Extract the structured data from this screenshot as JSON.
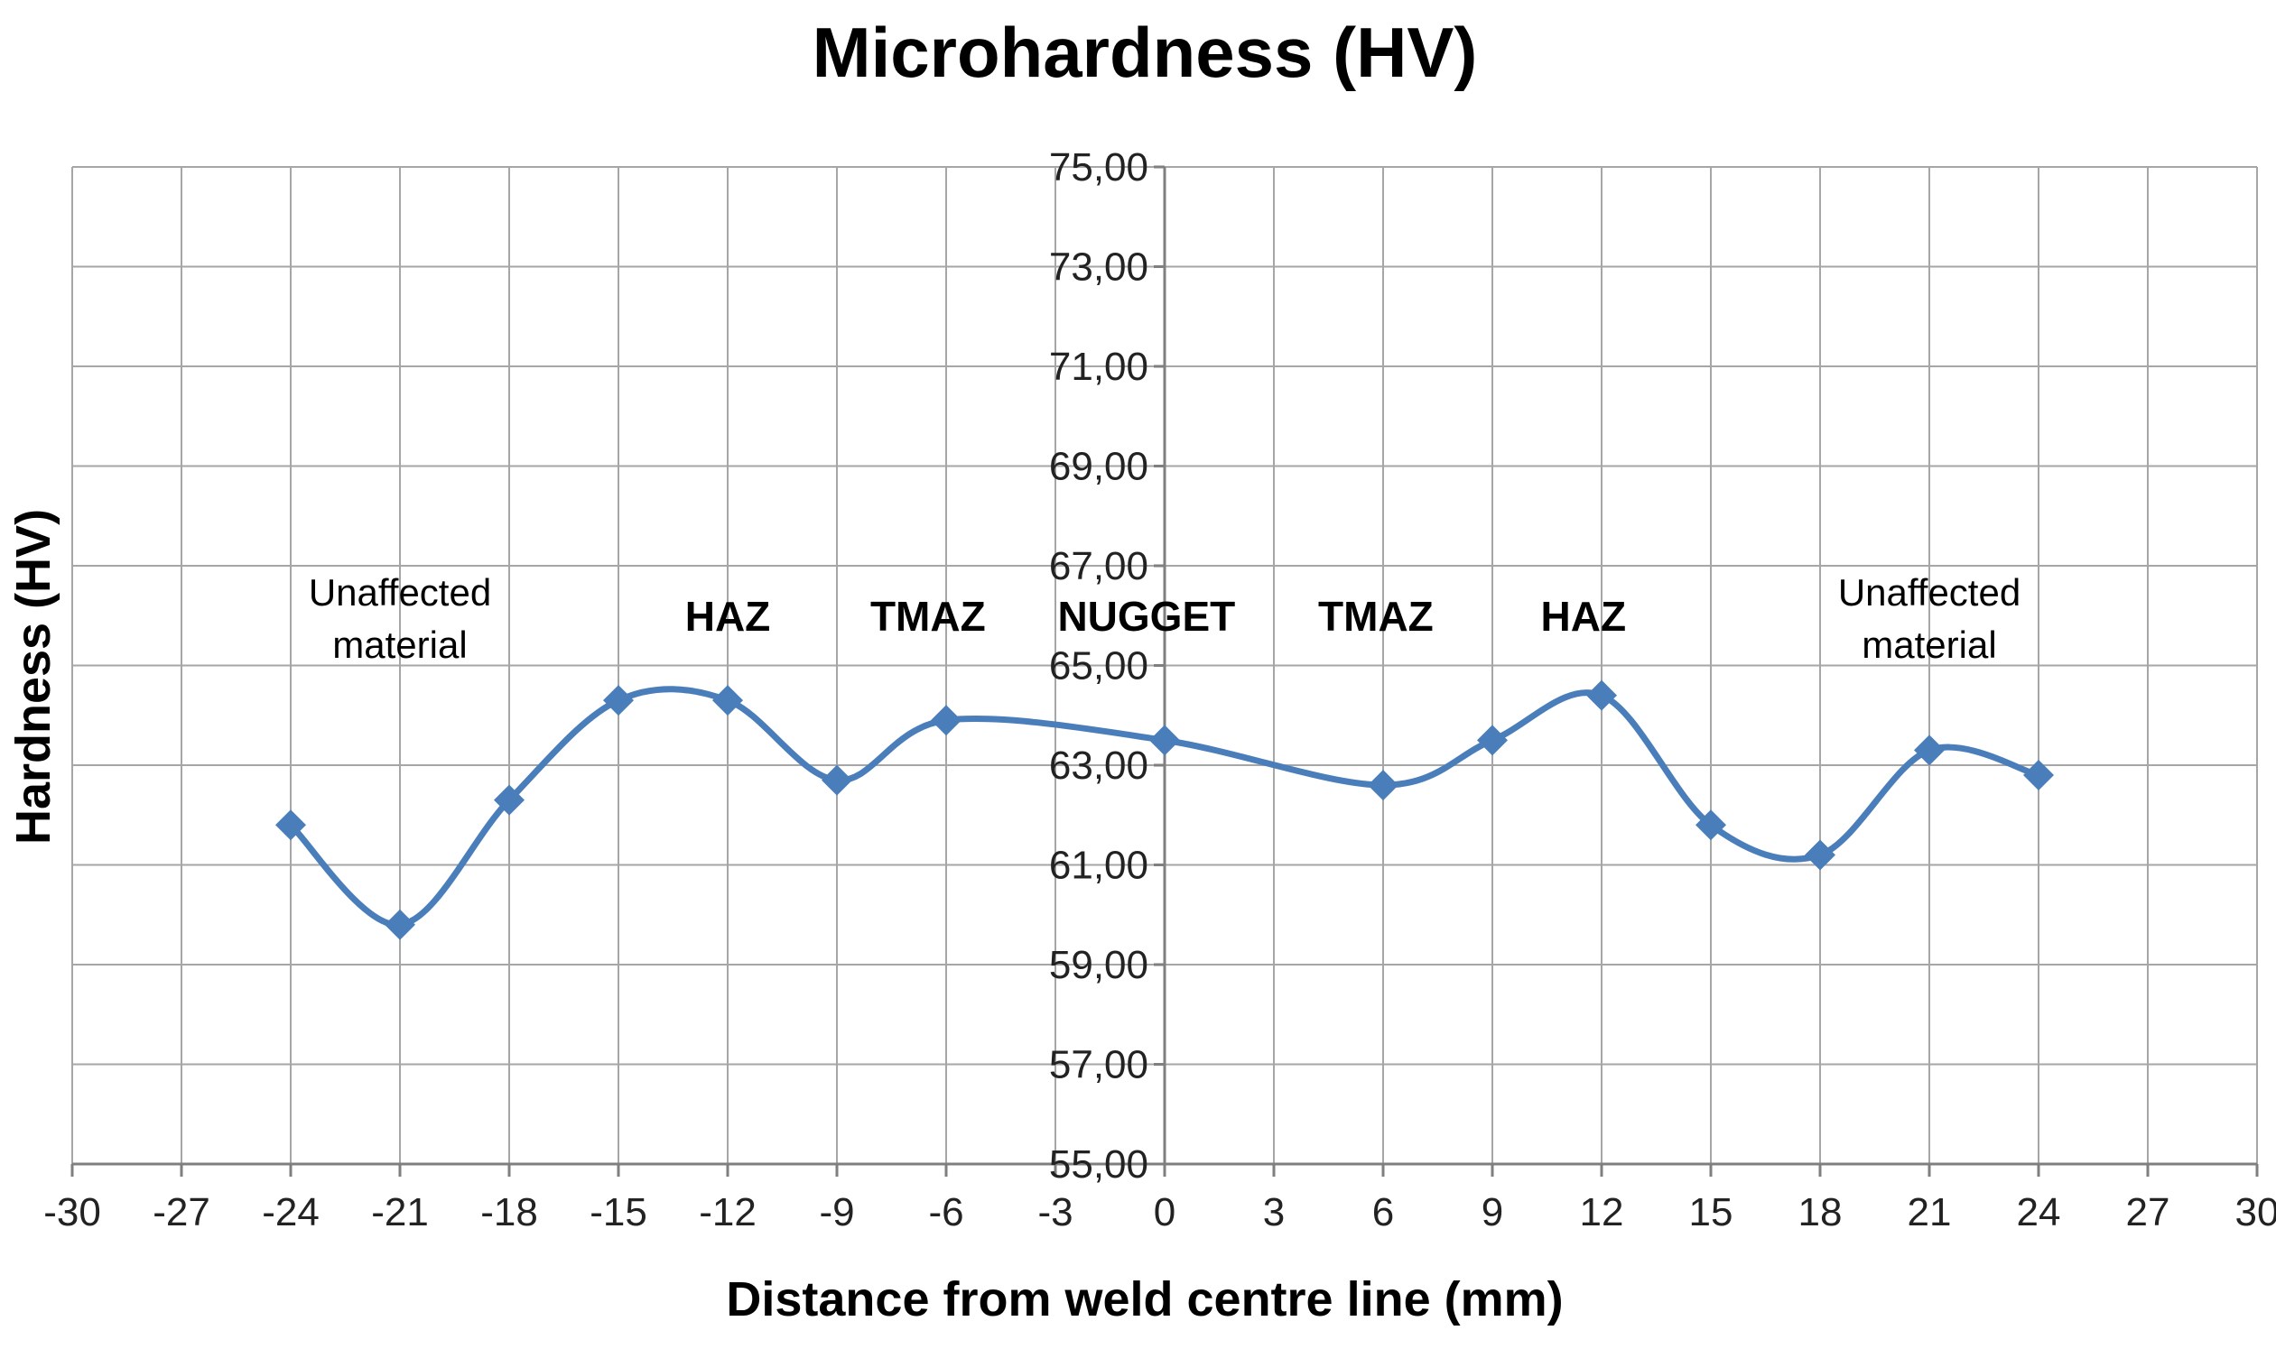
{
  "chart_data": {
    "type": "line",
    "title": "Microhardness (HV)",
    "xlabel": "Distance from weld centre line (mm)",
    "ylabel": "Hardness (HV)",
    "xlim": [
      -30,
      30
    ],
    "ylim": [
      55,
      75
    ],
    "x_ticks": [
      -30,
      -27,
      -24,
      -21,
      -18,
      -15,
      -12,
      -9,
      -6,
      -3,
      0,
      3,
      6,
      9,
      12,
      15,
      18,
      21,
      24,
      27,
      30
    ],
    "y_ticks": [
      55,
      57,
      59,
      61,
      63,
      65,
      67,
      69,
      71,
      73,
      75
    ],
    "y_tick_labels": [
      "55,00",
      "57,00",
      "59,00",
      "61,00",
      "63,00",
      "65,00",
      "67,00",
      "69,00",
      "71,00",
      "73,00",
      "75,00"
    ],
    "grid": true,
    "smooth": true,
    "marker": "diamond",
    "series_color": "#4a7ebb",
    "series": [
      {
        "x": [
          -24,
          -21,
          -18,
          -15,
          -12,
          -9,
          -6,
          0,
          6,
          9,
          12,
          15,
          18,
          21,
          24
        ],
        "y": [
          61.8,
          59.8,
          62.3,
          64.3,
          64.3,
          62.7,
          63.9,
          63.5,
          62.6,
          63.5,
          64.4,
          61.8,
          61.2,
          63.3,
          62.8
        ]
      }
    ],
    "annotations": [
      {
        "lines": [
          "Unaffected",
          "material"
        ],
        "x": -21,
        "y": 66.2,
        "weight": "normal"
      },
      {
        "lines": [
          "HAZ"
        ],
        "x": -12,
        "y": 65.7,
        "weight": "bold"
      },
      {
        "lines": [
          "TMAZ"
        ],
        "x": -6.5,
        "y": 65.7,
        "weight": "bold"
      },
      {
        "lines": [
          "NUGGET"
        ],
        "x": -0.5,
        "y": 65.7,
        "weight": "bold"
      },
      {
        "lines": [
          "TMAZ"
        ],
        "x": 5.8,
        "y": 65.7,
        "weight": "bold"
      },
      {
        "lines": [
          "HAZ"
        ],
        "x": 11.5,
        "y": 65.7,
        "weight": "bold"
      },
      {
        "lines": [
          "Unaffected",
          "material"
        ],
        "x": 21,
        "y": 66.2,
        "weight": "normal"
      }
    ]
  }
}
